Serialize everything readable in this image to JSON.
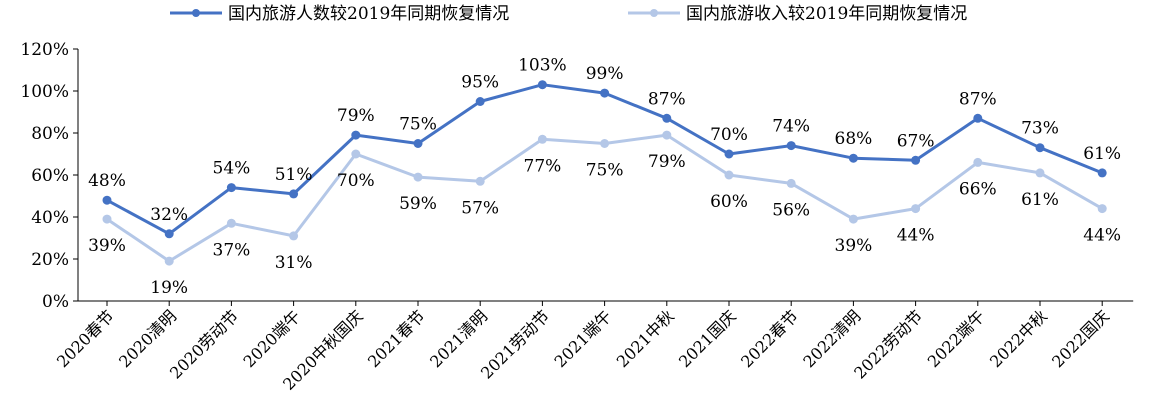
{
  "chart_data": {
    "type": "line",
    "title": "",
    "xlabel": "",
    "ylabel": "",
    "categories": [
      "2020春节",
      "2020清明",
      "2020劳动节",
      "2020端午",
      "2020中秋国庆",
      "2021春节",
      "2021清明",
      "2021劳动节",
      "2021端午",
      "2021中秋",
      "2021国庆",
      "2022春节",
      "2022清明",
      "2022劳动节",
      "2022端午",
      "2022中秋",
      "2022国庆"
    ],
    "yticks": [
      "0%",
      "20%",
      "40%",
      "60%",
      "80%",
      "100%",
      "120%"
    ],
    "ylim": [
      0,
      120
    ],
    "grid": false,
    "legend_position": "top",
    "series": [
      {
        "name": "国内旅游人数较2019年同期恢复情况",
        "color": "#4472C4",
        "values": [
          48,
          32,
          54,
          51,
          79,
          75,
          95,
          103,
          99,
          87,
          70,
          74,
          68,
          67,
          87,
          73,
          61
        ],
        "labels": [
          "48%",
          "32%",
          "54%",
          "51%",
          "79%",
          "75%",
          "95%",
          "103%",
          "99%",
          "87%",
          "70%",
          "74%",
          "68%",
          "67%",
          "87%",
          "73%",
          "61%"
        ]
      },
      {
        "name": "国内旅游收入较2019年同期恢复情况",
        "color": "#B4C7E7",
        "values": [
          39,
          19,
          37,
          31,
          70,
          59,
          57,
          77,
          75,
          79,
          60,
          56,
          39,
          44,
          66,
          61,
          44
        ],
        "labels": [
          "39%",
          "19%",
          "37%",
          "31%",
          "70%",
          "59%",
          "57%",
          "77%",
          "75%",
          "79%",
          "60%",
          "56%",
          "39%",
          "44%",
          "66%",
          "61%",
          "44%"
        ]
      }
    ]
  }
}
